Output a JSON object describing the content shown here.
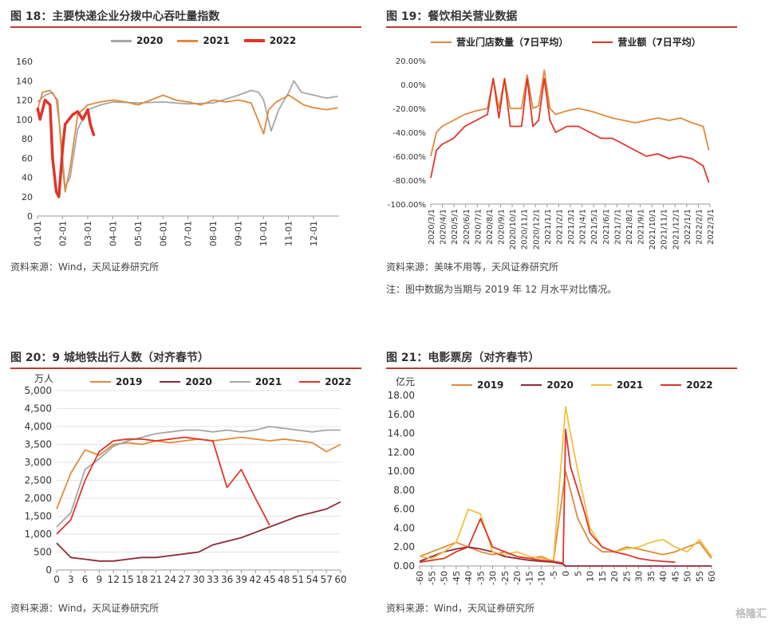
{
  "charts": [
    {
      "title": "图 18：主要快递企业分拨中心吞吐量指数",
      "source": "资料来源：Wind，天风证券研究所",
      "legend": [
        {
          "name": "2020",
          "color": "#a6a6a6"
        },
        {
          "name": "2021",
          "color": "#e08a3c"
        },
        {
          "name": "2022",
          "color": "#e0342a"
        }
      ],
      "yticks": [
        "160",
        "140",
        "120",
        "100",
        "80",
        "60",
        "40",
        "20",
        "0"
      ],
      "xticks": [
        "01-01",
        "02-01",
        "03-01",
        "04-01",
        "05-01",
        "06-01",
        "07-01",
        "08-01",
        "09-01",
        "10-01",
        "11-01",
        "12-01"
      ]
    },
    {
      "title": "图 19：餐饮相关营业数据",
      "source": "资料来源：美味不用等，天风证券研究所",
      "note": "注：图中数据为当期与 2019 年 12 月水平对比情况。",
      "legend": [
        {
          "name": "营业门店数量（7日平均）",
          "color": "#e08a3c"
        },
        {
          "name": "营业额（7日平均）",
          "color": "#e0342a"
        }
      ],
      "yticks": [
        "20.00%",
        "0.00%",
        "-20.00%",
        "-40.00%",
        "-60.00%",
        "-80.00%",
        "-100.00%"
      ],
      "xticks": [
        "2020/3/1",
        "2020/4/1",
        "2020/5/1",
        "2020/6/1",
        "2020/7/1",
        "2020/8/1",
        "2020/9/1",
        "2020/10/1",
        "2020/11/1",
        "2020/12/1",
        "2021/1/1",
        "2021/2/1",
        "2021/3/1",
        "2021/4/1",
        "2021/5/1",
        "2021/6/1",
        "2021/7/1",
        "2021/8/1",
        "2021/9/1",
        "2021/10/1",
        "2021/11/1",
        "2021/12/1",
        "2022/1/1",
        "2022/2/1",
        "2022/3/1"
      ]
    },
    {
      "title": "图 20：9 城地铁出行人数（对齐春节）",
      "source": "资料来源：Wind，天风证券研究所",
      "unit": "万人",
      "legend": [
        {
          "name": "2019",
          "color": "#e08a3c"
        },
        {
          "name": "2020",
          "color": "#8b2a3a"
        },
        {
          "name": "2021",
          "color": "#a6a6a6"
        },
        {
          "name": "2022",
          "color": "#e0342a"
        }
      ],
      "yticks": [
        "5,000",
        "4,500",
        "4,000",
        "3,500",
        "3,000",
        "2,500",
        "2,000",
        "1,500",
        "1,000",
        "500",
        "0"
      ],
      "xticks": [
        "0",
        "3",
        "6",
        "9",
        "12",
        "15",
        "18",
        "21",
        "24",
        "27",
        "30",
        "33",
        "36",
        "39",
        "42",
        "45",
        "48",
        "51",
        "54",
        "57",
        "60"
      ]
    },
    {
      "title": "图 21：电影票房（对齐春节）",
      "source": "资料来源：Wind，天风证券研究所",
      "unit": "亿元",
      "legend": [
        {
          "name": "2019",
          "color": "#e08a3c"
        },
        {
          "name": "2020",
          "color": "#8b2a3a"
        },
        {
          "name": "2021",
          "color": "#f0c040"
        },
        {
          "name": "2022",
          "color": "#e0342a"
        }
      ],
      "yticks": [
        "18.00",
        "16.00",
        "14.00",
        "12.00",
        "10.00",
        "8.00",
        "6.00",
        "4.00",
        "2.00",
        "0.00"
      ],
      "xticks": [
        "-60",
        "-55",
        "-50",
        "-45",
        "-40",
        "-35",
        "-30",
        "-25",
        "-20",
        "-15",
        "-10",
        "-5",
        "0",
        "5",
        "10",
        "15",
        "20",
        "25",
        "30",
        "35",
        "40",
        "45",
        "50",
        "55",
        "60"
      ]
    }
  ],
  "watermark": "格隆汇",
  "chart_data": [
    {
      "type": "line",
      "title": "图 18：主要快递企业分拨中心吞吐量指数",
      "ylim": [
        0,
        160
      ],
      "series": [
        {
          "name": "2020",
          "x_month": [
            1.0,
            1.3,
            1.6,
            1.75,
            1.9,
            2.1,
            2.3,
            2.6,
            3.0,
            3.5,
            4.0,
            5.0,
            6.0,
            7.0,
            8.0,
            9.0,
            9.5,
            9.8,
            10.0,
            10.3,
            10.6,
            11.0,
            11.2,
            11.5,
            12.0,
            12.5,
            12.95
          ],
          "y": [
            118,
            125,
            128,
            120,
            90,
            30,
            40,
            90,
            110,
            115,
            118,
            117,
            118,
            116,
            117,
            125,
            130,
            128,
            120,
            88,
            110,
            128,
            140,
            128,
            125,
            122,
            124
          ]
        },
        {
          "name": "2021",
          "x_month": [
            1.0,
            1.2,
            1.5,
            1.8,
            2.0,
            2.1,
            2.3,
            2.6,
            3.0,
            3.5,
            4.0,
            4.5,
            5.0,
            5.5,
            6.0,
            6.5,
            7.0,
            7.5,
            8.0,
            8.5,
            9.0,
            9.5,
            10.0,
            10.2,
            10.5,
            11.0,
            11.3,
            11.6,
            12.0,
            12.5,
            12.95
          ],
          "y": [
            110,
            128,
            130,
            120,
            50,
            25,
            50,
            105,
            115,
            118,
            120,
            118,
            115,
            120,
            125,
            120,
            118,
            115,
            120,
            118,
            120,
            117,
            85,
            110,
            118,
            125,
            120,
            115,
            112,
            110,
            112
          ]
        },
        {
          "name": "2022",
          "x_month": [
            1.0,
            1.1,
            1.3,
            1.5,
            1.6,
            1.75,
            1.85,
            2.0,
            2.1,
            2.25,
            2.4,
            2.6,
            2.8,
            3.0,
            3.1,
            3.25
          ],
          "y": [
            112,
            100,
            120,
            115,
            60,
            25,
            20,
            70,
            95,
            100,
            105,
            108,
            100,
            110,
            95,
            83
          ]
        }
      ]
    },
    {
      "type": "line",
      "title": "图 19：餐饮相关营业数据",
      "ylim": [
        -100,
        20
      ],
      "series": [
        {
          "name": "营业门店数量（7日平均）",
          "x_month_since_2020_03": [
            0,
            0.5,
            1,
            2,
            3,
            4,
            5,
            5.5,
            6,
            6.5,
            7,
            8,
            8.5,
            9,
            9.5,
            10,
            10.5,
            11,
            12,
            13,
            14,
            15,
            16,
            17,
            18,
            19,
            20,
            21,
            22,
            23,
            24,
            24.5
          ],
          "y": [
            -60,
            -40,
            -35,
            -30,
            -25,
            -22,
            -20,
            5,
            -20,
            5,
            -20,
            -20,
            8,
            -20,
            -18,
            12,
            -20,
            -25,
            -22,
            -20,
            -22,
            -25,
            -28,
            -30,
            -32,
            -30,
            -28,
            -30,
            -28,
            -32,
            -35,
            -55
          ]
        },
        {
          "name": "营业额（7日平均）",
          "x_month_since_2020_03": [
            0,
            0.5,
            1,
            2,
            3,
            4,
            5,
            5.5,
            6,
            6.5,
            7,
            8,
            8.5,
            9,
            9.5,
            10,
            10.5,
            11,
            12,
            13,
            14,
            15,
            16,
            17,
            18,
            19,
            20,
            21,
            22,
            23,
            24,
            24.5
          ],
          "y": [
            -78,
            -55,
            -50,
            -45,
            -35,
            -30,
            -25,
            5,
            -28,
            5,
            -35,
            -35,
            5,
            -35,
            -30,
            5,
            -30,
            -40,
            -35,
            -35,
            -40,
            -45,
            -45,
            -50,
            -55,
            -60,
            -58,
            -62,
            -60,
            -62,
            -68,
            -82
          ]
        }
      ]
    },
    {
      "type": "line",
      "title": "图 20：9 城地铁出行人数（对齐春节）",
      "ylim": [
        0,
        5000
      ],
      "series": [
        {
          "name": "2019",
          "x": [
            0,
            3,
            6,
            9,
            12,
            15,
            18,
            21,
            24,
            27,
            30,
            33,
            36,
            39,
            42,
            45,
            48,
            51,
            54,
            57,
            60
          ],
          "y": [
            1700,
            2700,
            3350,
            3200,
            3500,
            3550,
            3500,
            3600,
            3550,
            3600,
            3650,
            3600,
            3650,
            3700,
            3650,
            3600,
            3650,
            3600,
            3550,
            3300,
            3500
          ]
        },
        {
          "name": "2020",
          "x": [
            0,
            3,
            6,
            9,
            12,
            15,
            18,
            21,
            24,
            27,
            30,
            33,
            36,
            39,
            42,
            45,
            48,
            51,
            54,
            57,
            60
          ],
          "y": [
            750,
            350,
            300,
            250,
            250,
            300,
            350,
            350,
            400,
            450,
            500,
            700,
            800,
            900,
            1050,
            1200,
            1350,
            1500,
            1600,
            1700,
            1900
          ]
        },
        {
          "name": "2021",
          "x": [
            0,
            3,
            6,
            9,
            12,
            15,
            18,
            21,
            24,
            27,
            30,
            33,
            36,
            39,
            42,
            45,
            48,
            51,
            54,
            57,
            60
          ],
          "y": [
            1200,
            1600,
            2800,
            3100,
            3450,
            3600,
            3700,
            3800,
            3850,
            3900,
            3900,
            3850,
            3900,
            3850,
            3900,
            4000,
            3950,
            3900,
            3850,
            3900,
            3900
          ]
        },
        {
          "name": "2022",
          "x": [
            0,
            3,
            6,
            9,
            12,
            15,
            18,
            21,
            24,
            27,
            30,
            33,
            36,
            39,
            42,
            45
          ],
          "y": [
            1000,
            1400,
            2500,
            3300,
            3600,
            3650,
            3650,
            3600,
            3650,
            3700,
            3650,
            3600,
            2300,
            2800,
            2000,
            1250
          ]
        }
      ]
    },
    {
      "type": "line",
      "title": "图 21：电影票房（对齐春节）",
      "ylim": [
        0,
        18
      ],
      "series": [
        {
          "name": "2019",
          "x": [
            -60,
            -50,
            -45,
            -40,
            -35,
            -30,
            -25,
            -20,
            -15,
            -10,
            -5,
            0,
            3,
            5,
            10,
            15,
            20,
            25,
            30,
            35,
            40,
            45,
            50,
            55,
            60
          ],
          "y": [
            1.0,
            2.0,
            2.5,
            2.0,
            1.5,
            1.2,
            1.5,
            1.0,
            0.8,
            1.0,
            0.5,
            10.0,
            7.0,
            5.0,
            2.5,
            1.5,
            1.5,
            2.0,
            1.8,
            1.5,
            1.2,
            1.5,
            2.0,
            2.5,
            0.8
          ]
        },
        {
          "name": "2020",
          "x": [
            -60,
            -50,
            -45,
            -40,
            -35,
            -30,
            -25,
            -20,
            -15,
            -10,
            -5,
            -1,
            0,
            5,
            10,
            60
          ],
          "y": [
            0.5,
            1.5,
            1.8,
            2.0,
            1.8,
            1.5,
            1.0,
            0.8,
            0.6,
            0.5,
            0.4,
            0.2,
            0.0,
            0.0,
            0.0,
            0.0
          ]
        },
        {
          "name": "2021",
          "x": [
            -60,
            -55,
            -50,
            -45,
            -40,
            -35,
            -30,
            -25,
            -20,
            -15,
            -10,
            -5,
            0,
            2,
            5,
            8,
            10,
            15,
            20,
            25,
            30,
            35,
            40,
            45,
            50,
            55,
            60
          ],
          "y": [
            1.0,
            0.8,
            1.5,
            2.5,
            6.0,
            5.5,
            1.5,
            1.2,
            1.5,
            1.0,
            0.8,
            0.6,
            16.8,
            14.0,
            10.0,
            6.5,
            4.0,
            2.0,
            1.5,
            1.8,
            2.0,
            2.5,
            2.8,
            2.0,
            1.5,
            2.8,
            1.0
          ]
        },
        {
          "name": "2022",
          "x": [
            -60,
            -50,
            -45,
            -40,
            -35,
            -30,
            -25,
            -20,
            -15,
            -10,
            -5,
            -1,
            0,
            2,
            5,
            8,
            10,
            15,
            20,
            25,
            30,
            35,
            40,
            45
          ],
          "y": [
            0.4,
            0.8,
            1.5,
            2.0,
            5.0,
            2.0,
            1.5,
            1.0,
            0.8,
            0.6,
            0.5,
            0.3,
            14.4,
            10.5,
            8.0,
            5.5,
            3.5,
            2.0,
            1.5,
            1.2,
            0.8,
            0.6,
            0.5,
            0.4
          ]
        }
      ]
    }
  ]
}
